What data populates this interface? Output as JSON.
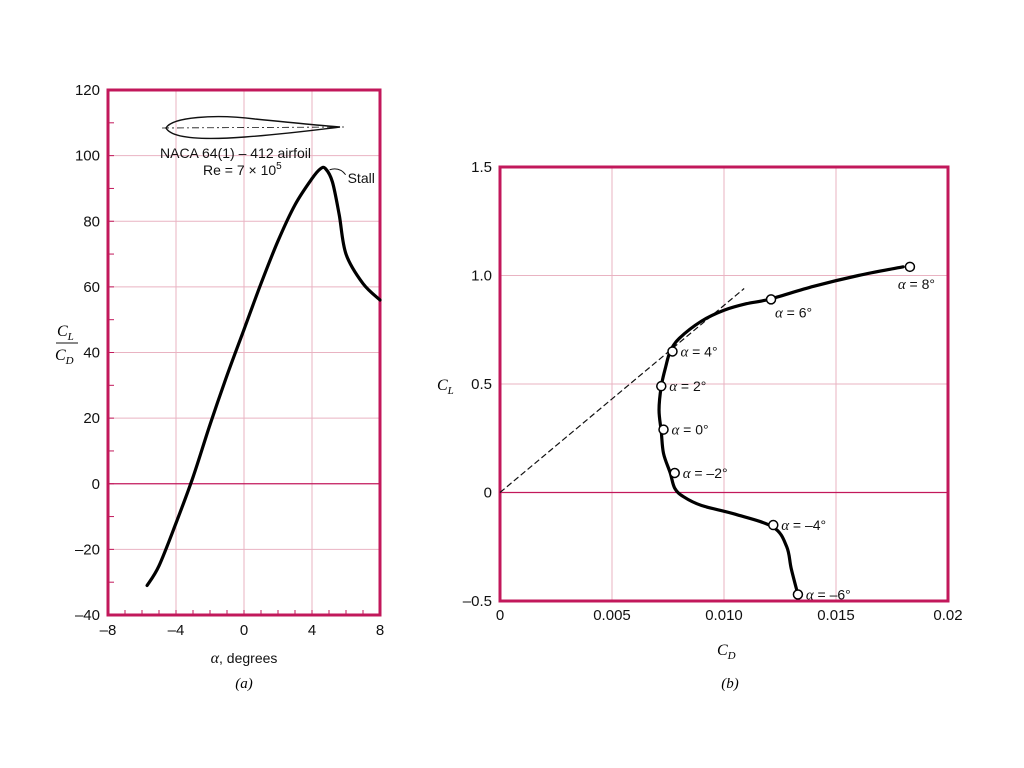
{
  "chart_data": [
    {
      "type": "line",
      "panel_label": "(a)",
      "xlabel_symbol": "α",
      "xlabel_text": ", degrees",
      "ylabel_numerator": "C",
      "ylabel_numerator_sub": "L",
      "ylabel_denominator": "C",
      "ylabel_denominator_sub": "D",
      "xlim": [
        -8,
        8
      ],
      "ylim": [
        -40,
        120
      ],
      "xticks": [
        -8,
        -4,
        0,
        4,
        8
      ],
      "yticks": [
        -40,
        -20,
        0,
        20,
        40,
        60,
        80,
        100,
        120
      ],
      "grid": true,
      "annotations": {
        "airfoil_name": "NACA 64(1) – 412 airfoil",
        "reynolds": "Re = 7 × 10",
        "reynolds_exp": "5",
        "stall": "Stall"
      },
      "stall_point": {
        "x": 4.8,
        "y": 96
      },
      "series": [
        {
          "x": [
            -5.7,
            -5.0,
            -4.0,
            -3.0,
            -2.0,
            -1.0,
            0.0,
            1.0,
            2.0,
            3.0,
            4.0,
            4.5,
            4.8,
            5.2,
            5.6,
            6.0,
            7.0,
            8.0
          ],
          "values": [
            -31,
            -25,
            -12,
            2,
            18,
            33,
            47,
            61,
            74,
            85,
            93,
            96,
            96,
            92,
            82,
            70,
            61,
            56
          ]
        }
      ]
    },
    {
      "type": "line",
      "panel_label": "(b)",
      "xlabel": "C",
      "xlabel_sub": "D",
      "ylabel": "C",
      "ylabel_sub": "L",
      "xlim": [
        0,
        0.02
      ],
      "ylim": [
        -0.5,
        1.5
      ],
      "xticks": [
        0,
        0.005,
        0.01,
        0.015,
        0.02
      ],
      "xtick_labels": [
        "0",
        "0.005",
        "0.010",
        "0.015",
        "0.02"
      ],
      "yticks": [
        -0.5,
        0,
        0.5,
        1.0,
        1.5
      ],
      "ytick_labels": [
        "–0.5",
        "0",
        "0.5",
        "1.0",
        "1.5"
      ],
      "grid": true,
      "series": [
        {
          "x": [
            0.0133,
            0.013,
            0.0128,
            0.0122,
            0.0105,
            0.009,
            0.0082,
            0.0078,
            0.0076,
            0.0073,
            0.0072,
            0.0071,
            0.0072,
            0.0074,
            0.0076,
            0.008,
            0.009,
            0.01,
            0.011,
            0.012,
            0.014,
            0.016,
            0.018
          ],
          "values": [
            -0.47,
            -0.35,
            -0.25,
            -0.16,
            -0.1,
            -0.06,
            -0.02,
            0.02,
            0.09,
            0.18,
            0.28,
            0.38,
            0.49,
            0.58,
            0.65,
            0.71,
            0.79,
            0.84,
            0.87,
            0.89,
            0.95,
            1.0,
            1.04
          ]
        }
      ],
      "tangent": {
        "x": [
          0,
          0.0109
        ],
        "values": [
          0,
          0.94
        ]
      },
      "markers": [
        {
          "x": 0.0133,
          "y": -0.47,
          "label": "α = –6°",
          "pos": "right"
        },
        {
          "x": 0.0122,
          "y": -0.15,
          "label": "α = –4°",
          "pos": "right"
        },
        {
          "x": 0.0078,
          "y": 0.09,
          "label": "α = –2°",
          "pos": "right"
        },
        {
          "x": 0.0073,
          "y": 0.29,
          "label": "α = 0°",
          "pos": "right"
        },
        {
          "x": 0.0072,
          "y": 0.49,
          "label": "α = 2°",
          "pos": "right"
        },
        {
          "x": 0.0077,
          "y": 0.65,
          "label": "α = 4°",
          "pos": "right"
        },
        {
          "x": 0.0121,
          "y": 0.89,
          "label": "α = 6°",
          "pos": "below"
        },
        {
          "x": 0.0183,
          "y": 1.04,
          "label": "α = 8°",
          "pos": "below"
        }
      ]
    }
  ]
}
